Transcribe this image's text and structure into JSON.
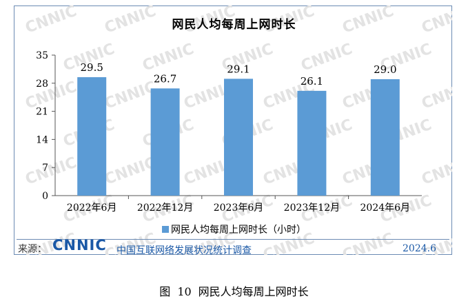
{
  "chart_data": {
    "type": "bar",
    "title": "网民人均每周上网时长",
    "categories": [
      "2022年6月",
      "2022年12月",
      "2023年6月",
      "2023年12月",
      "2024年6月"
    ],
    "series": [
      {
        "name": "网民人均每周上网时长（小时）",
        "values": [
          29.5,
          26.7,
          29.1,
          26.1,
          29.0
        ],
        "labels": [
          "29.5",
          "26.7",
          "29.1",
          "26.1",
          "29.0"
        ]
      }
    ],
    "yticks": [
      "0",
      "7",
      "14",
      "21",
      "28",
      "35"
    ],
    "ylim": [
      0,
      35
    ],
    "xlabel": "",
    "ylabel": "",
    "grid": false,
    "legend_position": "bottom",
    "bar_color": "#5b9bd5"
  },
  "watermark": "CNNIC",
  "footer": {
    "source_label": "来源：",
    "logo_text": "CNNIC",
    "survey_name": "中国互联网络发展状况统计调查",
    "date": "2024.6"
  },
  "caption": {
    "prefix": "图",
    "number": "10",
    "text": "网民人均每周上网时长"
  },
  "colors": {
    "accent": "#1a58a6",
    "border": "#6a8ab3",
    "bar": "#5b9bd5"
  }
}
